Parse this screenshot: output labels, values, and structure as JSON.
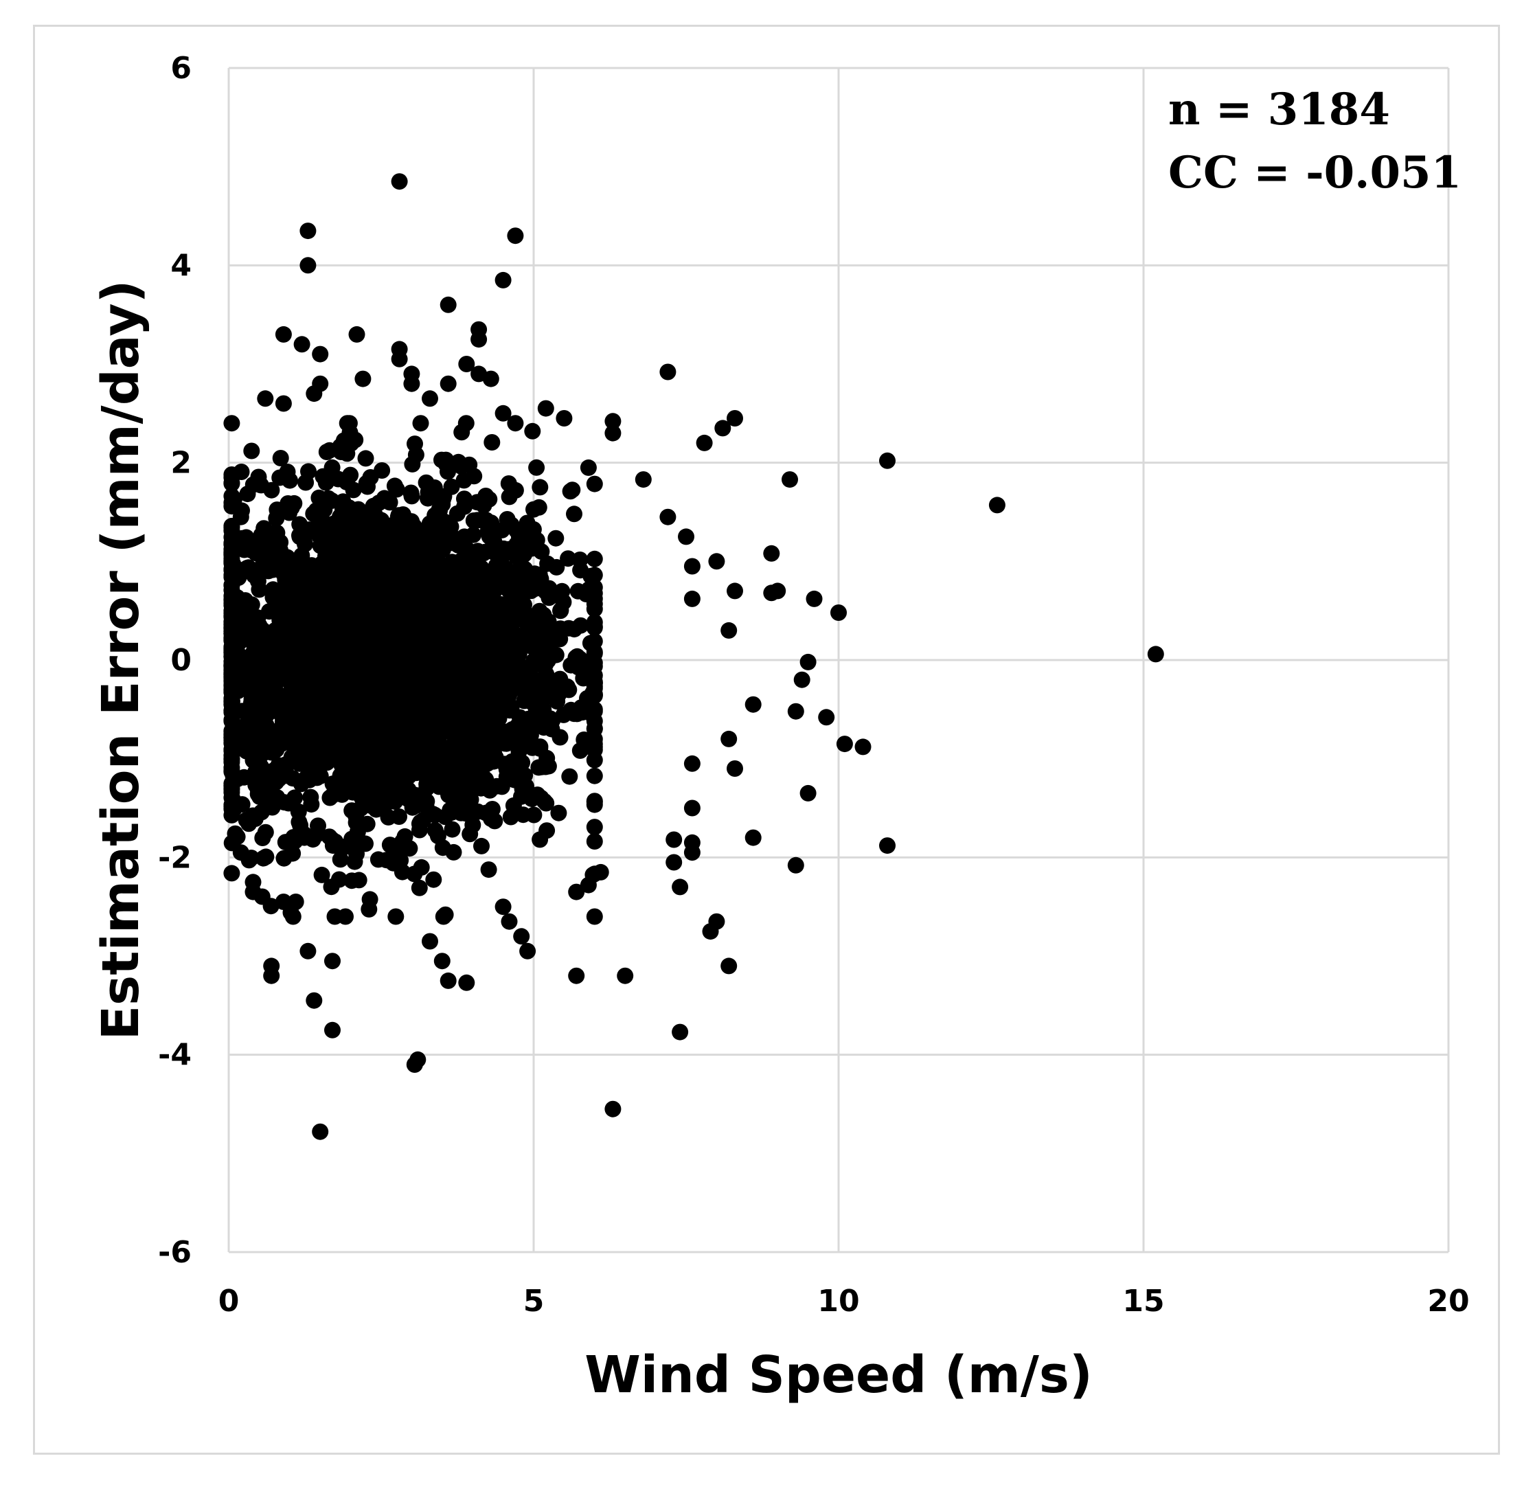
{
  "chart_data": {
    "type": "scatter",
    "title": "",
    "xlabel": "Wind Speed (m/s)",
    "ylabel": "Estimation Error (mm/day)",
    "xlim": [
      0,
      20
    ],
    "ylim": [
      -6,
      6
    ],
    "xticks": [
      0,
      5,
      10,
      15,
      20
    ],
    "yticks": [
      -6,
      -4,
      -2,
      0,
      2,
      4,
      6
    ],
    "grid": true,
    "marker_color": "#000000",
    "grid_color": "#d9d9d9",
    "annotations": [
      {
        "text": "n = 3184"
      },
      {
        "text": "CC = -0.051"
      }
    ],
    "point_count": 3184,
    "cluster": {
      "x_mean": 2.6,
      "x_sd": 1.5,
      "x_min": 0.05,
      "x_max": 6.0,
      "y_mean": 0.0,
      "y_sd": 0.85,
      "y_min": -2.6,
      "y_max": 2.4
    },
    "points": [
      [
        2.8,
        4.85
      ],
      [
        1.3,
        4.35
      ],
      [
        4.7,
        4.3
      ],
      [
        1.3,
        4.0
      ],
      [
        4.5,
        3.85
      ],
      [
        3.6,
        3.6
      ],
      [
        4.1,
        3.35
      ],
      [
        4.1,
        3.25
      ],
      [
        2.1,
        3.3
      ],
      [
        0.9,
        3.3
      ],
      [
        1.2,
        3.2
      ],
      [
        2.8,
        3.15
      ],
      [
        1.5,
        3.1
      ],
      [
        2.8,
        3.05
      ],
      [
        3.9,
        3.0
      ],
      [
        7.2,
        2.92
      ],
      [
        3.0,
        2.9
      ],
      [
        4.1,
        2.9
      ],
      [
        2.2,
        2.85
      ],
      [
        4.3,
        2.85
      ],
      [
        3.0,
        2.8
      ],
      [
        3.6,
        2.8
      ],
      [
        1.5,
        2.8
      ],
      [
        1.4,
        2.7
      ],
      [
        3.3,
        2.65
      ],
      [
        0.6,
        2.65
      ],
      [
        0.9,
        2.6
      ],
      [
        5.2,
        2.55
      ],
      [
        4.5,
        2.5
      ],
      [
        5.5,
        2.45
      ],
      [
        4.7,
        2.4
      ],
      [
        8.3,
        2.45
      ],
      [
        6.3,
        2.42
      ],
      [
        8.1,
        2.35
      ],
      [
        6.3,
        2.3
      ],
      [
        7.8,
        2.2
      ],
      [
        10.8,
        2.02
      ],
      [
        5.9,
        1.95
      ],
      [
        0.05,
        1.85
      ],
      [
        6.8,
        1.83
      ],
      [
        9.2,
        1.83
      ],
      [
        12.6,
        1.57
      ],
      [
        0.2,
        1.45
      ],
      [
        7.2,
        1.45
      ],
      [
        7.5,
        1.25
      ],
      [
        8.9,
        1.08
      ],
      [
        8.0,
        1.0
      ],
      [
        7.6,
        0.95
      ],
      [
        8.3,
        0.7
      ],
      [
        9.0,
        0.7
      ],
      [
        8.9,
        0.68
      ],
      [
        7.6,
        0.62
      ],
      [
        9.6,
        0.62
      ],
      [
        10.0,
        0.48
      ],
      [
        8.2,
        0.3
      ],
      [
        15.2,
        0.06
      ],
      [
        9.5,
        -0.02
      ],
      [
        9.4,
        -0.2
      ],
      [
        8.6,
        -0.45
      ],
      [
        9.3,
        -0.52
      ],
      [
        9.8,
        -0.58
      ],
      [
        8.2,
        -0.8
      ],
      [
        10.1,
        -0.85
      ],
      [
        10.4,
        -0.88
      ],
      [
        7.6,
        -1.05
      ],
      [
        8.3,
        -1.1
      ],
      [
        9.5,
        -1.35
      ],
      [
        7.6,
        -1.5
      ],
      [
        8.6,
        -1.8
      ],
      [
        7.3,
        -1.82
      ],
      [
        7.6,
        -1.85
      ],
      [
        10.8,
        -1.88
      ],
      [
        7.6,
        -1.95
      ],
      [
        0.2,
        -1.95
      ],
      [
        7.3,
        -2.05
      ],
      [
        9.3,
        -2.08
      ],
      [
        6.1,
        -2.15
      ],
      [
        0.4,
        -2.25
      ],
      [
        5.9,
        -2.28
      ],
      [
        0.4,
        -2.35
      ],
      [
        7.4,
        -2.3
      ],
      [
        5.7,
        -2.35
      ],
      [
        1.1,
        -2.45
      ],
      [
        0.9,
        -2.45
      ],
      [
        4.5,
        -2.5
      ],
      [
        6.0,
        -2.6
      ],
      [
        4.6,
        -2.65
      ],
      [
        8.0,
        -2.65
      ],
      [
        7.9,
        -2.75
      ],
      [
        4.8,
        -2.8
      ],
      [
        4.9,
        -2.95
      ],
      [
        3.3,
        -2.85
      ],
      [
        1.3,
        -2.95
      ],
      [
        3.5,
        -3.05
      ],
      [
        1.7,
        -3.05
      ],
      [
        8.2,
        -3.1
      ],
      [
        0.7,
        -3.1
      ],
      [
        0.7,
        -3.2
      ],
      [
        5.7,
        -3.2
      ],
      [
        6.5,
        -3.2
      ],
      [
        3.6,
        -3.25
      ],
      [
        3.9,
        -3.27
      ],
      [
        1.4,
        -3.45
      ],
      [
        1.7,
        -3.75
      ],
      [
        7.4,
        -3.77
      ],
      [
        3.1,
        -4.05
      ],
      [
        3.05,
        -4.1
      ],
      [
        6.3,
        -4.55
      ],
      [
        1.5,
        -4.78
      ]
    ]
  }
}
